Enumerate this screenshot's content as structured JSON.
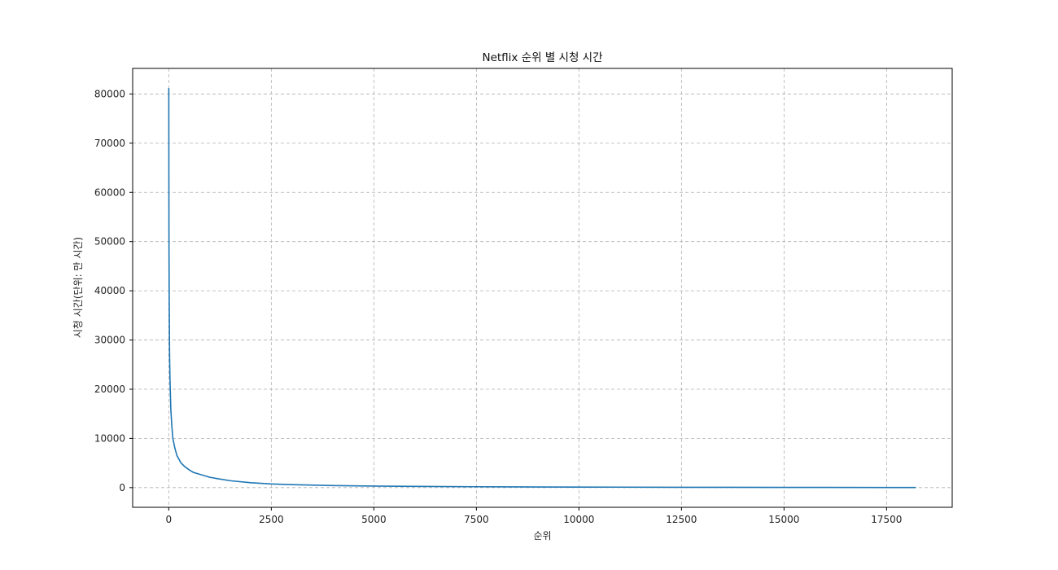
{
  "chart_data": {
    "type": "line",
    "title": "Netflix 순위 별 시청 시간",
    "xlabel": "순위",
    "ylabel": "시청 시간(단위: 만 시간)",
    "xlim": [
      -880,
      19100
    ],
    "ylim": [
      -4000,
      85200
    ],
    "xticks": [
      0,
      2500,
      5000,
      7500,
      10000,
      12500,
      15000,
      17500
    ],
    "yticks": [
      0,
      10000,
      20000,
      30000,
      40000,
      50000,
      60000,
      70000,
      80000
    ],
    "grid": true,
    "legend": "none",
    "series": [
      {
        "color": "#1f77b4",
        "x": [
          1,
          5,
          10,
          20,
          30,
          50,
          75,
          100,
          150,
          200,
          300,
          400,
          500,
          600,
          800,
          1000,
          1200,
          1500,
          2000,
          2500,
          3000,
          4000,
          5000,
          6000,
          7500,
          9000,
          10000,
          12500,
          15000,
          17500,
          18214
        ],
        "y": [
          81200,
          52000,
          40000,
          27000,
          22000,
          16000,
          12500,
          10000,
          8000,
          6500,
          5000,
          4200,
          3600,
          3100,
          2600,
          2100,
          1800,
          1400,
          1000,
          750,
          600,
          420,
          320,
          250,
          180,
          130,
          110,
          70,
          45,
          30,
          25
        ]
      }
    ]
  }
}
